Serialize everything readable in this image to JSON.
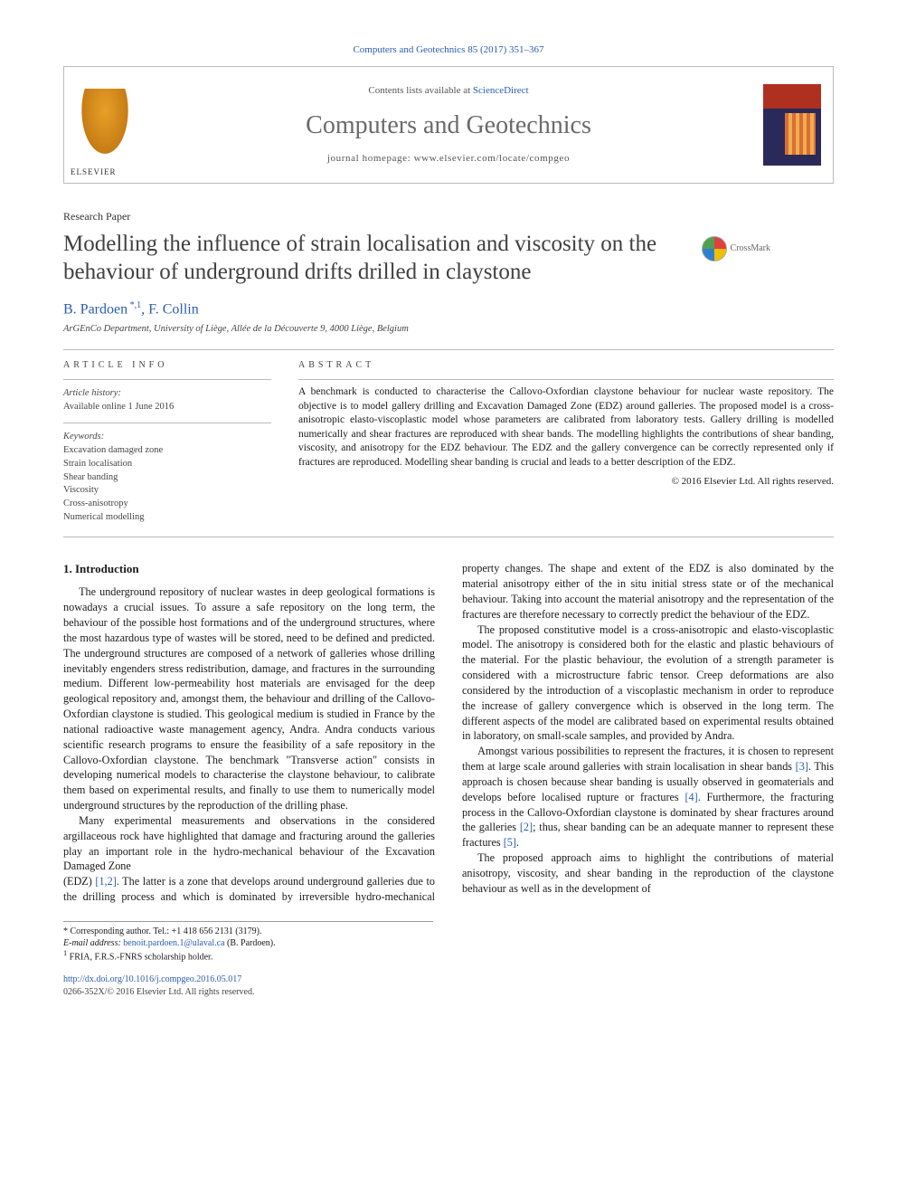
{
  "citation": "Computers and Geotechnics 85 (2017) 351–367",
  "header": {
    "contents_prefix": "Contents lists available at ",
    "contents_link": "ScienceDirect",
    "journal": "Computers and Geotechnics",
    "homepage_prefix": "journal homepage: ",
    "homepage_url": "www.elsevier.com/locate/compgeo"
  },
  "paper_type": "Research Paper",
  "title": "Modelling the influence of strain localisation and viscosity on the behaviour of underground drifts drilled in claystone",
  "crossmark": "CrossMark",
  "authors_html": "B. Pardoen",
  "author_marks": " *,1",
  "author2": ", F. Collin",
  "affiliation": "ArGEnCo Department, University of Liège, Allée de la Découverte 9, 4000 Liège, Belgium",
  "article_info": {
    "heading": "article info",
    "history_lbl": "Article history:",
    "history_val": "Available online 1 June 2016",
    "keywords_lbl": "Keywords:",
    "keywords": "Excavation damaged zone\nStrain localisation\nShear banding\nViscosity\nCross-anisotropy\nNumerical modelling"
  },
  "abstract": {
    "heading": "abstract",
    "text": "A benchmark is conducted to characterise the Callovo-Oxfordian claystone behaviour for nuclear waste repository. The objective is to model gallery drilling and Excavation Damaged Zone (EDZ) around galleries. The proposed model is a cross-anisotropic elasto-viscoplastic model whose parameters are calibrated from laboratory tests. Gallery drilling is modelled numerically and shear fractures are reproduced with shear bands. The modelling highlights the contributions of shear banding, viscosity, and anisotropy for the EDZ behaviour. The EDZ and the gallery convergence can be correctly represented only if fractures are reproduced. Modelling shear banding is crucial and leads to a better description of the EDZ.",
    "copyright": "© 2016 Elsevier Ltd. All rights reserved."
  },
  "section1": {
    "heading": "1. Introduction",
    "p1": "The underground repository of nuclear wastes in deep geological formations is nowadays a crucial issues. To assure a safe repository on the long term, the behaviour of the possible host formations and of the underground structures, where the most hazardous type of wastes will be stored, need to be defined and predicted. The underground structures are composed of a network of galleries whose drilling inevitably engenders stress redistribution, damage, and fractures in the surrounding medium. Different low-permeability host materials are envisaged for the deep geological repository and, amongst them, the behaviour and drilling of the Callovo-Oxfordian claystone is studied. This geological medium is studied in France by the national radioactive waste management agency, Andra. Andra conducts various scientific research programs to ensure the feasibility of a safe repository in the Callovo-Oxfordian claystone. The benchmark \"Transverse action\" consists in developing numerical models to characterise the claystone behaviour, to calibrate them based on experimental results, and finally to use them to numerically model underground structures by the reproduction of the drilling phase.",
    "p2": "Many experimental measurements and observations in the considered argillaceous rock have highlighted that damage and fracturing around the galleries play an important role in the hydro-mechanical behaviour of the Excavation Damaged Zone",
    "p3a": "(EDZ) ",
    "p3b": ". The latter is a zone that develops around underground galleries due to the drilling process and which is dominated by irreversible hydro-mechanical property changes. The shape and extent of the EDZ is also dominated by the material anisotropy either of the in situ initial stress state or of the mechanical behaviour. Taking into account the material anisotropy and the representation of the fractures are therefore necessary to correctly predict the behaviour of the EDZ.",
    "p4": "The proposed constitutive model is a cross-anisotropic and elasto-viscoplastic model. The anisotropy is considered both for the elastic and plastic behaviours of the material. For the plastic behaviour, the evolution of a strength parameter is considered with a microstructure fabric tensor. Creep deformations are also considered by the introduction of a viscoplastic mechanism in order to reproduce the increase of gallery convergence which is observed in the long term. The different aspects of the model are calibrated based on experimental results obtained in laboratory, on small-scale samples, and provided by Andra.",
    "p5a": "Amongst various possibilities to represent the fractures, it is chosen to represent them at large scale around galleries with strain localisation in shear bands ",
    "p5b": ". This approach is chosen because shear banding is usually observed in geomaterials and develops before localised rupture or fractures ",
    "p5c": ". Furthermore, the fracturing process in the Callovo-Oxfordian claystone is dominated by shear fractures around the galleries ",
    "p5d": "; thus, shear banding can be an adequate manner to represent these fractures ",
    "p5e": ".",
    "p6": "The proposed approach aims to highlight the contributions of material anisotropy, viscosity, and shear banding in the reproduction of the claystone behaviour as well as in the development of"
  },
  "refs": {
    "r12": "[1,2]",
    "r3": "[3]",
    "r4": "[4]",
    "r2": "[2]",
    "r5": "[5]"
  },
  "footnotes": {
    "corr_mark": "*",
    "corr_text": " Corresponding author. Tel.: +1 418 656 2131 (3179).",
    "email_lbl": "E-mail address: ",
    "email": "benoit.pardoen.1@ulaval.ca",
    "email_sfx": " (B. Pardoen).",
    "fn1_mark": "1",
    "fn1_text": " FRIA, F.R.S.-FNRS scholarship holder."
  },
  "doi": {
    "url": "http://dx.doi.org/10.1016/j.compgeo.2016.05.017",
    "issn_line": "0266-352X/© 2016 Elsevier Ltd. All rights reserved."
  },
  "colors": {
    "link": "#2a5db0",
    "text": "#1a1a1a",
    "muted": "#6a6a6a",
    "rule": "#bbbbbb"
  }
}
